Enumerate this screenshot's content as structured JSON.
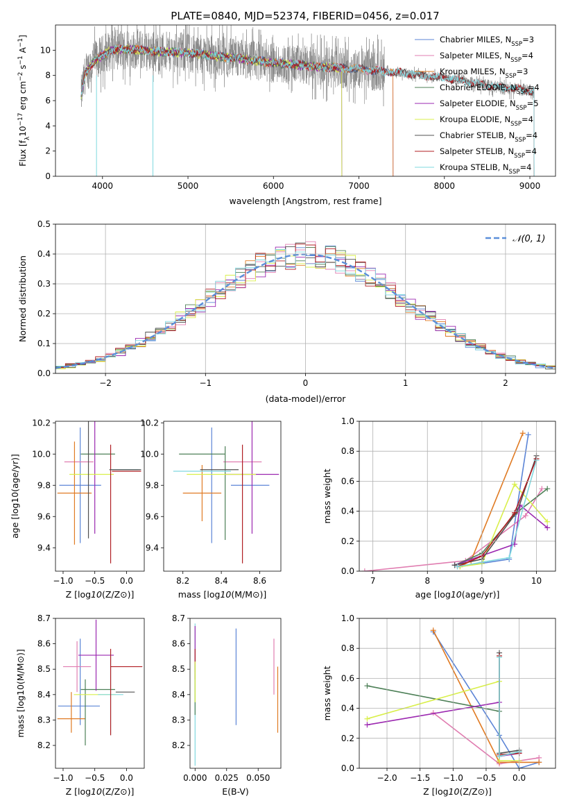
{
  "figure_title": "PLATE=0840, MJD=52374, FIBERID=0456, z=0.017",
  "colors": {
    "Chabrier MILES": "#5b84d6",
    "Salpeter MILES": "#e07cb0",
    "Kroupa MILES": "#e07a22",
    "Chabrier ELODIE": "#4c7f56",
    "Salpeter ELODIE": "#9b27b0",
    "Kroupa ELODIE": "#d9ef4a",
    "Chabrier STELIB": "#505050",
    "Salpeter STELIB": "#b01d22",
    "Kroupa STELIB": "#7fd8df",
    "data": "#7f7f7f",
    "gaussian": "#5b8fd9"
  },
  "chart_data": [
    {
      "type": "line",
      "id": "spectrum",
      "xlabel": "wavelength [Angstrom, rest frame]",
      "ylabel": "Flux [f$_\\lambda$10$^{-17}$ erg cm$^{-2}$ s$^{-1}$ A$^{-1}$]",
      "ylabel_parts": [
        "Flux [f",
        "λ",
        "10",
        "−17",
        " erg cm",
        "−2",
        " s",
        "−1",
        " A",
        "−1",
        "]"
      ],
      "xlim": [
        3450,
        9300
      ],
      "ylim": [
        0,
        12
      ],
      "xticks": [
        4000,
        5000,
        6000,
        7000,
        8000,
        9000
      ],
      "yticks": [
        0,
        2,
        4,
        6,
        8,
        10
      ],
      "grid": false,
      "legend_position": "top-right",
      "legend": [
        {
          "name": "Chabrier MILES",
          "nssp": "3"
        },
        {
          "name": "Salpeter MILES",
          "nssp": "4"
        },
        {
          "name": "Kroupa MILES",
          "nssp": "3"
        },
        {
          "name": "Chabrier ELODIE",
          "nssp": "4"
        },
        {
          "name": "Salpeter ELODIE",
          "nssp": "5"
        },
        {
          "name": "Kroupa ELODIE",
          "nssp": "4"
        },
        {
          "name": "Chabrier STELIB",
          "nssp": "4"
        },
        {
          "name": "Salpeter STELIB",
          "nssp": "4"
        },
        {
          "name": "Kroupa STELIB",
          "nssp": "4"
        }
      ],
      "nssp_label": "N",
      "nssp_sub": "SSP",
      "continuum": [
        [
          3750,
          6.4
        ],
        [
          3800,
          8.2
        ],
        [
          3900,
          9.1
        ],
        [
          4000,
          9.6
        ],
        [
          4100,
          10.0
        ],
        [
          4300,
          10.1
        ],
        [
          4600,
          9.9
        ],
        [
          5000,
          9.8
        ],
        [
          5500,
          9.4
        ],
        [
          6000,
          9.0
        ],
        [
          6500,
          8.7
        ],
        [
          7000,
          8.5
        ],
        [
          7500,
          8.2
        ],
        [
          8000,
          7.8
        ],
        [
          8500,
          7.2
        ],
        [
          9000,
          6.8
        ],
        [
          9050,
          6.7
        ]
      ],
      "model_ranges": {
        "Chabrier MILES": [
          3750,
          7400
        ],
        "Salpeter MILES": [
          3750,
          7400
        ],
        "Kroupa MILES": [
          3750,
          7400
        ],
        "Chabrier ELODIE": [
          3750,
          6800
        ],
        "Salpeter ELODIE": [
          3750,
          6800
        ],
        "Kroupa ELODIE": [
          3750,
          6800
        ],
        "Chabrier STELIB": [
          3750,
          9050
        ],
        "Salpeter STELIB": [
          3750,
          9050
        ],
        "Kroupa STELIB": [
          3750,
          9050
        ]
      }
    },
    {
      "type": "histogram",
      "id": "residuals",
      "xlabel": "(data-model)/error",
      "ylabel": "Normed distribution",
      "xlim": [
        -2.5,
        2.5
      ],
      "ylim": [
        0,
        0.5
      ],
      "xticks": [
        -2,
        -1,
        0,
        1,
        2
      ],
      "yticks": [
        0.0,
        0.1,
        0.2,
        0.3,
        0.4,
        0.5
      ],
      "grid": true,
      "legend_position": "top-right",
      "legend": [
        {
          "name": "$\\mathcal{N}(0,1)$",
          "display": "𝒩(0, 1)"
        }
      ],
      "bin_width": 0.1
    },
    {
      "type": "scatter",
      "id": "age-vs-Z",
      "xlabel": "Z [log10(Z/Z⊙)]",
      "ylabel": "age [log10(age/yr)]",
      "xlim": [
        -1.12,
        0.28
      ],
      "ylim": [
        9.25,
        10.21
      ],
      "xticks": [
        -1.0,
        -0.5,
        0.0
      ],
      "yticks": [
        9.4,
        9.6,
        9.8,
        10.0,
        10.2
      ],
      "grid": false,
      "errorbars": [
        {
          "series": "Chabrier MILES",
          "x": -0.73,
          "y": 9.8,
          "xerr": 0.33,
          "yerr": 0.37
        },
        {
          "series": "Salpeter MILES",
          "x": -0.75,
          "y": 9.95,
          "xerr": 0.23,
          "yerr": 0.0
        },
        {
          "series": "Kroupa MILES",
          "x": -0.82,
          "y": 9.75,
          "xerr": 0.27,
          "yerr": 0.33
        },
        {
          "series": "Chabrier ELODIE",
          "x": -0.45,
          "y": 10.0,
          "xerr": 0.27,
          "yerr": 0.0
        },
        {
          "series": "Salpeter ELODIE",
          "x": -0.5,
          "y": 9.87,
          "xerr": 0.0,
          "yerr": 0.38
        },
        {
          "series": "Kroupa ELODIE",
          "x": -0.55,
          "y": 9.87,
          "xerr": 0.35,
          "yerr": 0.0
        },
        {
          "series": "Chabrier STELIB",
          "x": -0.6,
          "y": 10.0,
          "xerr": 0.0,
          "yerr": 0.54
        },
        {
          "series": "Salpeter STELIB",
          "x": -0.25,
          "y": 9.68,
          "xerr": 0.0,
          "yerr": 0.38
        },
        {
          "series": "Kroupa STELIB",
          "x": -0.03,
          "y": 9.9,
          "xerr": 0.22,
          "yerr": 0.0
        },
        {
          "series": "Chabrier STELIB",
          "x": -0.02,
          "y": 9.9,
          "xerr": 0.25,
          "yerr": 0.0
        },
        {
          "series": "Salpeter STELIB",
          "x": 0.0,
          "y": 9.89,
          "xerr": 0.23,
          "yerr": 0.0
        }
      ]
    },
    {
      "type": "scatter",
      "id": "age-vs-mass",
      "xlabel": "mass [log10(M/M⊙)]",
      "ylabel": "",
      "xlim": [
        8.1,
        8.71
      ],
      "ylim": [
        9.25,
        10.21
      ],
      "xticks": [
        8.2,
        8.4,
        8.6
      ],
      "yticks": [
        9.4,
        9.6,
        9.8,
        10.0,
        10.2
      ],
      "grid": false,
      "errorbars": [
        {
          "series": "Chabrier MILES",
          "x": 8.35,
          "y": 9.8,
          "xerr": 0.0,
          "yerr": 0.37
        },
        {
          "series": "Chabrier MILES",
          "x": 8.55,
          "y": 9.8,
          "xerr": 0.1,
          "yerr": 0.0
        },
        {
          "series": "Salpeter MILES",
          "x": 8.51,
          "y": 9.95,
          "xerr": 0.1,
          "yerr": 0.0
        },
        {
          "series": "Kroupa MILES",
          "x": 8.3,
          "y": 9.75,
          "xerr": 0.1,
          "yerr": 0.18
        },
        {
          "series": "Chabrier ELODIE",
          "x": 8.3,
          "y": 10.0,
          "xerr": 0.12,
          "yerr": 0.0
        },
        {
          "series": "Chabrier ELODIE",
          "x": 8.42,
          "y": 9.75,
          "xerr": 0.0,
          "yerr": 0.3
        },
        {
          "series": "Salpeter ELODIE",
          "x": 8.56,
          "y": 9.87,
          "xerr": 0.14,
          "yerr": 0.38
        },
        {
          "series": "Kroupa ELODIE",
          "x": 8.4,
          "y": 9.87,
          "xerr": 0.18,
          "yerr": 0.0
        },
        {
          "series": "Kroupa STELIB",
          "x": 8.3,
          "y": 9.89,
          "xerr": 0.15,
          "yerr": 0.0
        },
        {
          "series": "Chabrier STELIB",
          "x": 8.39,
          "y": 9.9,
          "xerr": 0.1,
          "yerr": 0.0
        },
        {
          "series": "Salpeter STELIB",
          "x": 8.51,
          "y": 9.68,
          "xerr": 0.0,
          "yerr": 0.38
        }
      ]
    },
    {
      "type": "line",
      "id": "mass-weight-vs-age",
      "xlabel": "age [log10(age/yr)]",
      "ylabel": "mass weight",
      "xlim": [
        6.75,
        10.35
      ],
      "ylim": [
        0,
        1
      ],
      "xticks": [
        7,
        8,
        9,
        10
      ],
      "yticks": [
        0.0,
        0.2,
        0.4,
        0.6,
        0.8,
        1.0
      ],
      "grid": true,
      "series": [
        {
          "name": "Chabrier MILES",
          "points": [
            [
              8.6,
              0.03
            ],
            [
              9.5,
              0.08
            ],
            [
              9.85,
              0.91
            ]
          ]
        },
        {
          "name": "Salpeter MILES",
          "points": [
            [
              6.85,
              0.0
            ],
            [
              8.7,
              0.07
            ],
            [
              9.8,
              0.37
            ],
            [
              10.1,
              0.55
            ]
          ]
        },
        {
          "name": "Kroupa MILES",
          "points": [
            [
              8.6,
              0.03
            ],
            [
              8.8,
              0.07
            ],
            [
              9.75,
              0.92
            ]
          ]
        },
        {
          "name": "Chabrier ELODIE",
          "points": [
            [
              8.5,
              0.04
            ],
            [
              9.0,
              0.12
            ],
            [
              9.6,
              0.38
            ],
            [
              10.2,
              0.55
            ]
          ]
        },
        {
          "name": "Salpeter ELODIE",
          "points": [
            [
              8.5,
              0.04
            ],
            [
              9.6,
              0.18
            ],
            [
              9.7,
              0.44
            ],
            [
              10.2,
              0.29
            ]
          ]
        },
        {
          "name": "Kroupa ELODIE",
          "points": [
            [
              8.6,
              0.03
            ],
            [
              9.0,
              0.05
            ],
            [
              9.6,
              0.58
            ],
            [
              10.2,
              0.33
            ]
          ]
        },
        {
          "name": "Chabrier STELIB",
          "points": [
            [
              8.5,
              0.04
            ],
            [
              9.0,
              0.08
            ],
            [
              9.65,
              0.4
            ],
            [
              10.0,
              0.77
            ]
          ]
        },
        {
          "name": "Salpeter STELIB",
          "points": [
            [
              8.55,
              0.03
            ],
            [
              9.0,
              0.1
            ],
            [
              9.6,
              0.39
            ],
            [
              10.0,
              0.75
            ]
          ]
        },
        {
          "name": "Kroupa STELIB",
          "points": [
            [
              8.55,
              0.03
            ],
            [
              9.0,
              0.06
            ],
            [
              9.5,
              0.09
            ],
            [
              10.0,
              0.74
            ]
          ]
        }
      ]
    },
    {
      "type": "scatter",
      "id": "mass-vs-Z",
      "xlabel": "Z [log10(Z/Z⊙)]",
      "ylabel": "mass [log10(M/M⊙)]",
      "xlim": [
        -1.12,
        0.28
      ],
      "ylim": [
        8.11,
        8.7
      ],
      "xticks": [
        -1.0,
        -0.5,
        0.0
      ],
      "yticks": [
        8.2,
        8.3,
        8.4,
        8.5,
        8.6,
        8.7
      ],
      "grid": false,
      "errorbars": [
        {
          "series": "Chabrier MILES",
          "x": -0.75,
          "y": 8.355,
          "xerr": 0.33,
          "yerr": 0.0
        },
        {
          "series": "Chabrier MILES",
          "x": -0.73,
          "y": 8.45,
          "xerr": 0.0,
          "yerr": 0.17
        },
        {
          "series": "Salpeter MILES",
          "x": -0.78,
          "y": 8.51,
          "xerr": 0.22,
          "yerr": 0.1
        },
        {
          "series": "Kroupa MILES",
          "x": -0.87,
          "y": 8.305,
          "xerr": 0.22,
          "yerr": 0.0
        },
        {
          "series": "Kroupa MILES",
          "x": -0.87,
          "y": 8.33,
          "xerr": 0.0,
          "yerr": 0.08
        },
        {
          "series": "Chabrier ELODIE",
          "x": -0.45,
          "y": 8.42,
          "xerr": 0.27,
          "yerr": 0.0
        },
        {
          "series": "Chabrier ELODIE",
          "x": -0.65,
          "y": 8.33,
          "xerr": 0.0,
          "yerr": 0.13
        },
        {
          "series": "Salpeter ELODIE",
          "x": -0.48,
          "y": 8.555,
          "xerr": 0.28,
          "yerr": 0.14
        },
        {
          "series": "Kroupa ELODIE",
          "x": -0.5,
          "y": 8.4,
          "xerr": 0.33,
          "yerr": 0.0
        },
        {
          "series": "Kroupa STELIB",
          "x": -0.25,
          "y": 8.4,
          "xerr": 0.2,
          "yerr": 0.16
        },
        {
          "series": "Chabrier STELIB",
          "x": -0.02,
          "y": 8.41,
          "xerr": 0.15,
          "yerr": 0.0
        },
        {
          "series": "Salpeter STELIB",
          "x": 0.0,
          "y": 8.51,
          "xerr": 0.25,
          "yerr": 0.0
        },
        {
          "series": "Salpeter STELIB",
          "x": -0.25,
          "y": 8.41,
          "xerr": 0.0,
          "yerr": 0.17
        }
      ]
    },
    {
      "type": "scatter",
      "id": "mass-vs-ebv",
      "xlabel": "E(B-V)",
      "ylabel": "",
      "xlim": [
        -0.004,
        0.068
      ],
      "ylim": [
        8.11,
        8.7
      ],
      "xticks": [
        0.0,
        0.025,
        0.05
      ],
      "xticklabels": [
        "0.000",
        "0.025",
        "0.050"
      ],
      "yticks": [
        8.2,
        8.3,
        8.4,
        8.5,
        8.6,
        8.7
      ],
      "grid": false,
      "errorbars": [
        {
          "series": "Kroupa STELIB",
          "x": 0.0,
          "y": 8.4,
          "xerr": 0.0,
          "yerr": 0.28
        },
        {
          "series": "Salpeter ELODIE",
          "x": 0.0,
          "y": 8.58,
          "xerr": 0.0,
          "yerr": 0.09
        },
        {
          "series": "Salpeter STELIB",
          "x": 0.0,
          "y": 8.52,
          "xerr": 0.0,
          "yerr": 0.06
        },
        {
          "series": "Chabrier ELODIE",
          "x": 0.0,
          "y": 8.42,
          "xerr": 0.0,
          "yerr": 0.1
        },
        {
          "series": "Kroupa ELODIE",
          "x": 0.0,
          "y": 8.45,
          "xerr": 0.0,
          "yerr": 0.08
        },
        {
          "series": "Chabrier MILES",
          "x": 0.0325,
          "y": 8.47,
          "xerr": 0.0,
          "yerr": 0.19
        },
        {
          "series": "Salpeter MILES",
          "x": 0.0625,
          "y": 8.51,
          "xerr": 0.0,
          "yerr": 0.11
        },
        {
          "series": "Kroupa MILES",
          "x": 0.0655,
          "y": 8.38,
          "xerr": 0.0,
          "yerr": 0.13
        }
      ]
    },
    {
      "type": "line",
      "id": "mass-weight-vs-Z",
      "xlabel": "Z [log10(Z/Z⊙)]",
      "ylabel": "mass weight",
      "xlim": [
        -2.42,
        0.55
      ],
      "ylim": [
        0,
        1
      ],
      "xticks": [
        -2.0,
        -1.5,
        -1.0,
        -0.5,
        0.0
      ],
      "yticks": [
        0.0,
        0.2,
        0.4,
        0.6,
        0.8,
        1.0
      ],
      "grid": true,
      "series": [
        {
          "name": "Chabrier MILES",
          "points": [
            [
              -1.3,
              0.91
            ],
            [
              -0.3,
              0.22
            ],
            [
              0.0,
              0.0
            ],
            [
              0.3,
              0.04
            ]
          ]
        },
        {
          "name": "Salpeter MILES",
          "points": [
            [
              -1.3,
              0.37
            ],
            [
              -0.3,
              0.03
            ],
            [
              0.3,
              0.07
            ]
          ]
        },
        {
          "name": "Kroupa MILES",
          "points": [
            [
              -1.3,
              0.92
            ],
            [
              -0.3,
              0.04
            ],
            [
              0.3,
              0.04
            ]
          ]
        },
        {
          "name": "Chabrier ELODIE",
          "points": [
            [
              -2.3,
              0.55
            ],
            [
              -0.3,
              0.38
            ],
            [
              -0.3,
              0.08
            ],
            [
              0.0,
              0.11
            ]
          ]
        },
        {
          "name": "Salpeter ELODIE",
          "points": [
            [
              -2.3,
              0.29
            ],
            [
              -0.3,
              0.44
            ],
            [
              -0.3,
              0.08
            ],
            [
              0.0,
              0.1
            ]
          ]
        },
        {
          "name": "Kroupa ELODIE",
          "points": [
            [
              -2.3,
              0.33
            ],
            [
              -0.3,
              0.58
            ],
            [
              -0.3,
              0.05
            ],
            [
              0.0,
              0.05
            ]
          ]
        },
        {
          "name": "Chabrier STELIB",
          "points": [
            [
              -0.3,
              0.77
            ],
            [
              -0.3,
              0.1
            ],
            [
              0.0,
              0.12
            ]
          ]
        },
        {
          "name": "Salpeter STELIB",
          "points": [
            [
              -0.3,
              0.75
            ],
            [
              -0.3,
              0.09
            ],
            [
              0.0,
              0.1
            ]
          ]
        },
        {
          "name": "Kroupa STELIB",
          "points": [
            [
              -0.3,
              0.74
            ],
            [
              -0.3,
              0.08
            ],
            [
              0.0,
              0.11
            ]
          ]
        }
      ]
    }
  ]
}
